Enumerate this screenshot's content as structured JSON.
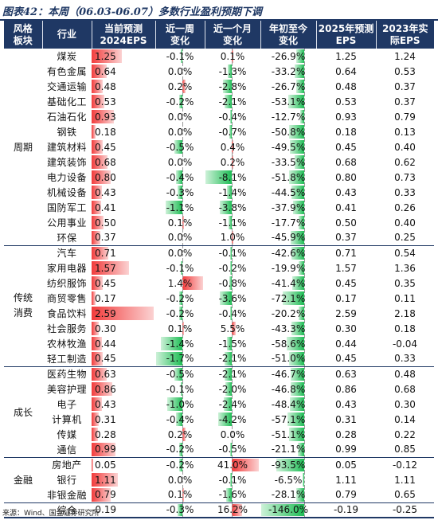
{
  "title": "图表42：本周（06.03-06.07）多数行业盈利预期下调",
  "headers": {
    "group": [
      "风格",
      "板块"
    ],
    "industry": [
      "行业"
    ],
    "eps2024": [
      "当前预测",
      "2024EPS"
    ],
    "week": [
      "近一周",
      "变化"
    ],
    "month": [
      "近一个月",
      "变化"
    ],
    "ytd": [
      "年初至今",
      "变化"
    ],
    "eps2025": [
      "2025年预测",
      "EPS"
    ],
    "eps2023": [
      "2023年实",
      "际EPS"
    ]
  },
  "colors": {
    "header_bg": "#1f3864",
    "pos_bar": "#f23c3c",
    "neg_bar": "#1ebd55"
  },
  "groups": [
    {
      "name": "周期",
      "rows": [
        {
          "industry": "煤炭",
          "eps2024": "1.25",
          "week": "-0.1%",
          "month": "0.1%",
          "ytd": "-26.9%",
          "eps2025": "1.25",
          "eps2023": "1.24"
        },
        {
          "industry": "有色金属",
          "eps2024": "0.64",
          "week": "0.0%",
          "month": "-1.3%",
          "ytd": "-33.2%",
          "eps2025": "0.64",
          "eps2023": "0.53"
        },
        {
          "industry": "交通运输",
          "eps2024": "0.48",
          "week": "0.2%",
          "month": "-2.8%",
          "ytd": "-26.7%",
          "eps2025": "0.48",
          "eps2023": "0.37"
        },
        {
          "industry": "基础化工",
          "eps2024": "0.53",
          "week": "-0.2%",
          "month": "-2.1%",
          "ytd": "-53.1%",
          "eps2025": "0.53",
          "eps2023": "0.37"
        },
        {
          "industry": "石油石化",
          "eps2024": "0.93",
          "week": "0.0%",
          "month": "-0.4%",
          "ytd": "-12.7%",
          "eps2025": "0.93",
          "eps2023": "0.79"
        },
        {
          "industry": "钢铁",
          "eps2024": "0.18",
          "week": "0.0%",
          "month": "-0.7%",
          "ytd": "-50.8%",
          "eps2025": "0.18",
          "eps2023": "0.13"
        },
        {
          "industry": "建筑材料",
          "eps2024": "0.45",
          "week": "-0.5%",
          "month": "0.4%",
          "ytd": "-49.5%",
          "eps2025": "0.45",
          "eps2023": "0.40"
        },
        {
          "industry": "建筑装饰",
          "eps2024": "0.68",
          "week": "0.0%",
          "month": "0.2%",
          "ytd": "-33.5%",
          "eps2025": "0.68",
          "eps2023": "0.62"
        },
        {
          "industry": "电力设备",
          "eps2024": "0.80",
          "week": "-0.4%",
          "month": "-8.1%",
          "ytd": "-51.8%",
          "eps2025": "0.80",
          "eps2023": "0.73"
        },
        {
          "industry": "机械设备",
          "eps2024": "0.43",
          "week": "-0.3%",
          "month": "-1.4%",
          "ytd": "-44.5%",
          "eps2025": "0.43",
          "eps2023": "0.33"
        },
        {
          "industry": "国防军工",
          "eps2024": "0.41",
          "week": "-1.1%",
          "month": "-3.8%",
          "ytd": "-37.9%",
          "eps2025": "0.41",
          "eps2023": "0.26"
        },
        {
          "industry": "公用事业",
          "eps2024": "0.50",
          "week": "0.1%",
          "month": "-1.1%",
          "ytd": "-17.7%",
          "eps2025": "0.50",
          "eps2023": "0.40"
        },
        {
          "industry": "环保",
          "eps2024": "0.37",
          "week": "0.0%",
          "month": "1.0%",
          "ytd": "-45.9%",
          "eps2025": "0.37",
          "eps2023": "0.25"
        }
      ]
    },
    {
      "name": "传统消费",
      "rows": [
        {
          "industry": "汽车",
          "eps2024": "0.71",
          "week": "0.0%",
          "month": "-0.1%",
          "ytd": "-42.6%",
          "eps2025": "0.71",
          "eps2023": "0.54"
        },
        {
          "industry": "家用电器",
          "eps2024": "1.57",
          "week": "-0.1%",
          "month": "-0.2%",
          "ytd": "-19.9%",
          "eps2025": "1.57",
          "eps2023": "1.36"
        },
        {
          "industry": "纺织服饰",
          "eps2024": "0.45",
          "week": "1.4%",
          "month": "-0.8%",
          "ytd": "-41.4%",
          "eps2025": "0.45",
          "eps2023": "0.35"
        },
        {
          "industry": "商贸零售",
          "eps2024": "0.17",
          "week": "-0.2%",
          "month": "-3.6%",
          "ytd": "-72.1%",
          "eps2025": "0.17",
          "eps2023": "0.11"
        },
        {
          "industry": "食品饮料",
          "eps2024": "2.59",
          "week": "-0.2%",
          "month": "-0.4%",
          "ytd": "-20.2%",
          "eps2025": "2.59",
          "eps2023": "2.18"
        },
        {
          "industry": "社会服务",
          "eps2024": "0.30",
          "week": "0.1%",
          "month": "5.5%",
          "ytd": "-43.3%",
          "eps2025": "0.30",
          "eps2023": "0.18"
        },
        {
          "industry": "农林牧渔",
          "eps2024": "0.44",
          "week": "-1.4%",
          "month": "-1.5%",
          "ytd": "-58.6%",
          "eps2025": "0.44",
          "eps2023": "-0.04"
        },
        {
          "industry": "轻工制造",
          "eps2024": "0.45",
          "week": "-1.7%",
          "month": "-2.1%",
          "ytd": "-51.0%",
          "eps2025": "0.45",
          "eps2023": "0.33"
        }
      ]
    },
    {
      "name": "成长",
      "rows": [
        {
          "industry": "医药生物",
          "eps2024": "0.63",
          "week": "-0.5%",
          "month": "-2.1%",
          "ytd": "-46.7%",
          "eps2025": "0.63",
          "eps2023": "0.48"
        },
        {
          "industry": "美容护理",
          "eps2024": "0.86",
          "week": "-0.1%",
          "month": "-2.0%",
          "ytd": "-46.8%",
          "eps2025": "0.86",
          "eps2023": "0.68"
        },
        {
          "industry": "电子",
          "eps2024": "0.43",
          "week": "-1.0%",
          "month": "-2.4%",
          "ytd": "-48.4%",
          "eps2025": "0.43",
          "eps2023": "0.30"
        },
        {
          "industry": "计算机",
          "eps2024": "0.31",
          "week": "-0.4%",
          "month": "-4.2%",
          "ytd": "-57.1%",
          "eps2025": "0.31",
          "eps2023": "0.14"
        },
        {
          "industry": "传媒",
          "eps2024": "0.28",
          "week": "0.2%",
          "month": "0.0%",
          "ytd": "-51.1%",
          "eps2025": "0.28",
          "eps2023": "0.22"
        },
        {
          "industry": "通信",
          "eps2024": "0.99",
          "week": "-0.2%",
          "month": "-0.5%",
          "ytd": "-21.1%",
          "eps2025": "0.99",
          "eps2023": "0.85"
        }
      ]
    },
    {
      "name": "金融",
      "rows": [
        {
          "industry": "房地产",
          "eps2024": "0.05",
          "week": "-0.2%",
          "month": "41.0%",
          "ytd": "-93.5%",
          "eps2025": "0.05",
          "eps2023": "-0.12"
        },
        {
          "industry": "银行",
          "eps2024": "1.11",
          "week": "0.0%",
          "month": "-0.1%",
          "ytd": "-6.5%",
          "eps2025": "1.11",
          "eps2023": "1.11"
        },
        {
          "industry": "非银金融",
          "eps2024": "0.79",
          "week": "0.1%",
          "month": "-1.6%",
          "ytd": "-28.1%",
          "eps2025": "0.79",
          "eps2023": "0.65"
        }
      ]
    }
  ],
  "total": {
    "industry": "综合",
    "eps2024": "-0.19",
    "week": "-0.3%",
    "month": "16.2%",
    "ytd": "-146.0%",
    "eps2025": "-0.19",
    "eps2023": "-0.25"
  },
  "source": "来源：Wind、国金证券研究所"
}
